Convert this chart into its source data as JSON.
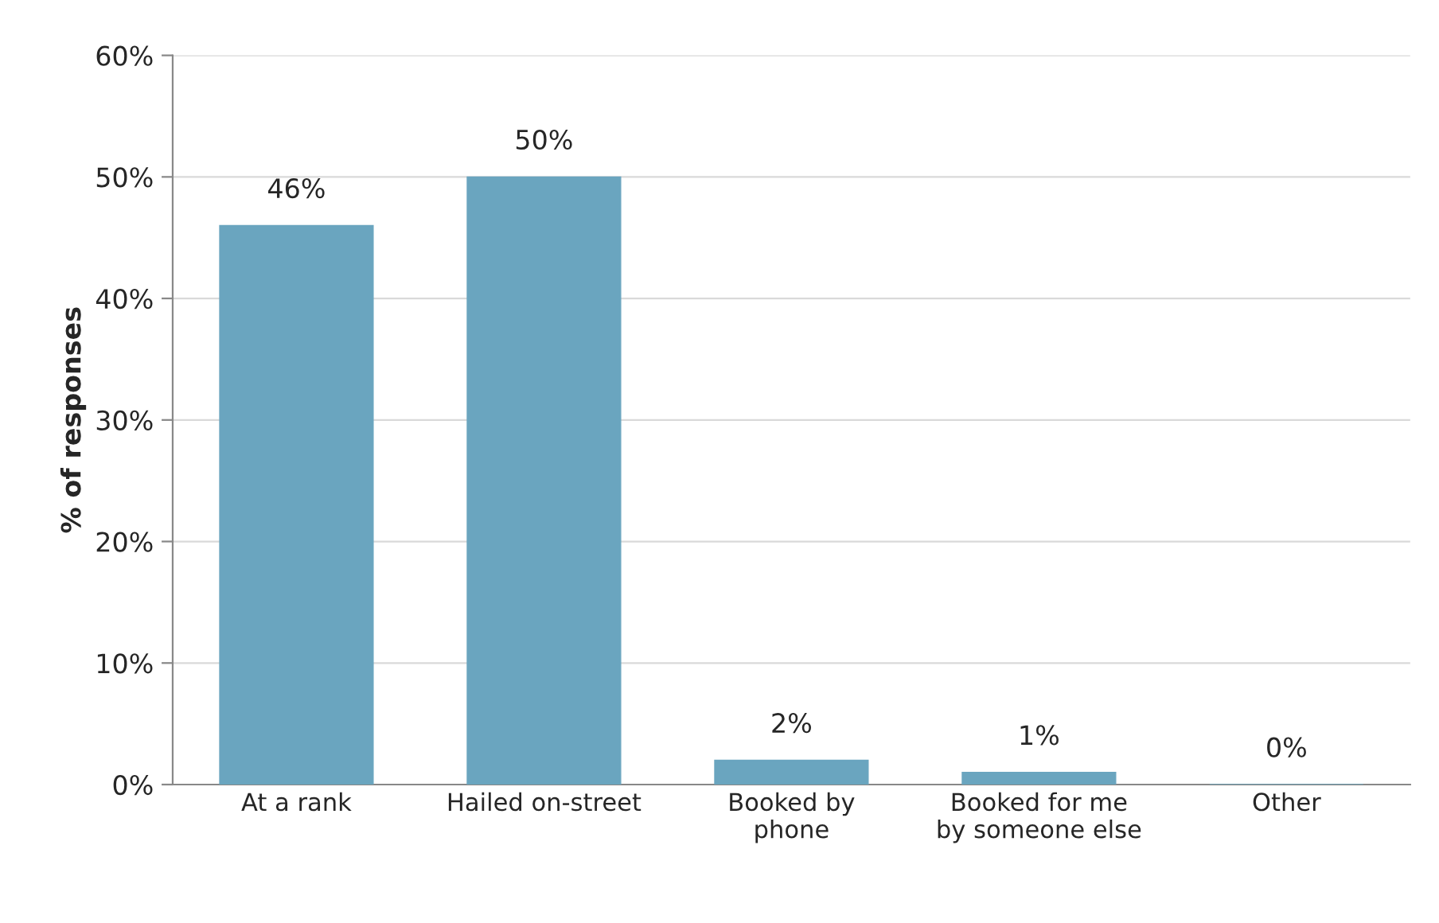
{
  "chart_data": {
    "type": "bar",
    "ylabel": "% of responses",
    "categories": [
      "At a rank",
      "Hailed on-street",
      "Booked by\nphone",
      "Booked for me\nby someone else",
      "Other"
    ],
    "values": [
      46,
      50,
      2,
      1,
      0
    ],
    "value_labels": [
      "46%",
      "50%",
      "2%",
      "1%",
      "0%"
    ],
    "color": "#6aa5bf",
    "ylim": [
      0,
      60
    ],
    "yticks": [
      {
        "value": 0,
        "label": "0%"
      },
      {
        "value": 10,
        "label": "10%"
      },
      {
        "value": 20,
        "label": "20%"
      },
      {
        "value": 30,
        "label": "30%"
      },
      {
        "value": 40,
        "label": "40%"
      },
      {
        "value": 50,
        "label": "50%"
      },
      {
        "value": 60,
        "label": "60%"
      }
    ],
    "grid": "y"
  }
}
